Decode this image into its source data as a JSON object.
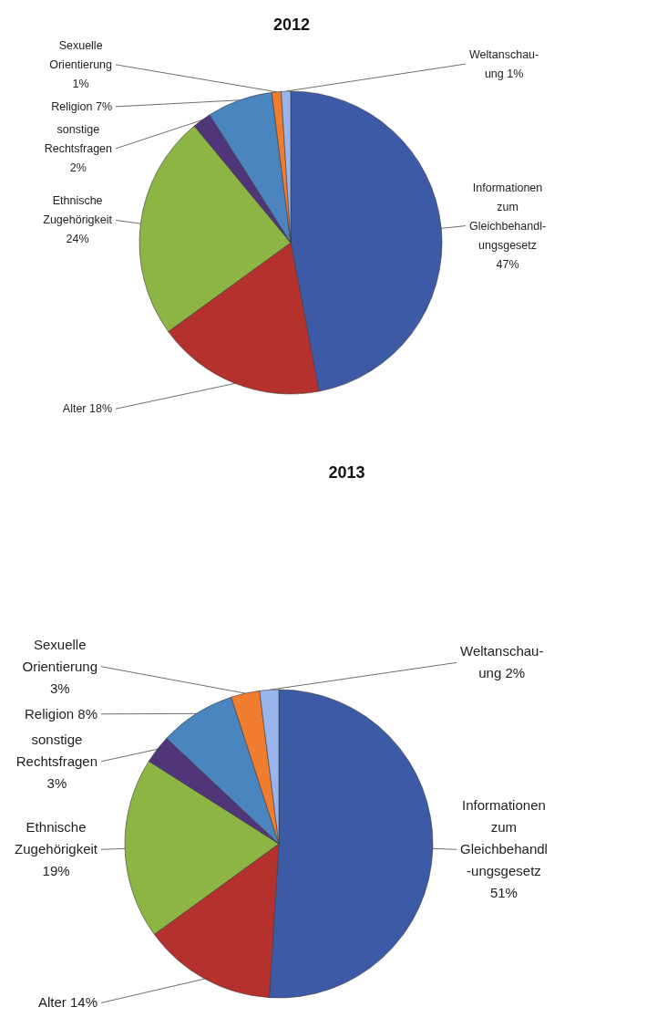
{
  "chart_data": [
    {
      "type": "pie",
      "title": "2012",
      "categories": [
        "Informationen zum Gleichbehandl-ungsgesetz",
        "Alter",
        "Ethnische Zugehörigkeit",
        "sonstige Rechtsfragen",
        "Religion",
        "Sexuelle Orientierung",
        "Weltanschau-ung"
      ],
      "values": [
        47,
        18,
        24,
        2,
        7,
        1,
        1
      ],
      "value_labels": [
        "47%",
        "18%",
        "24%",
        "2%",
        "7%",
        "1%",
        "1%"
      ],
      "colors": [
        "#3d5aa6",
        "#b5312d",
        "#8db544",
        "#51357a",
        "#4a85c0",
        "#f07c30",
        "#9ab5ec"
      ]
    },
    {
      "type": "pie",
      "title": "2013",
      "categories": [
        "Informationen zum Gleichbehandl -ungsgesetz",
        "Alter",
        "Ethnische Zugehörigkeit",
        "sonstige Rechtsfragen",
        "Religion",
        "Sexuelle Orientierung",
        "Weltanschau-ung"
      ],
      "values": [
        51,
        14,
        19,
        3,
        8,
        3,
        2
      ],
      "value_labels": [
        "51%",
        "14%",
        "19%",
        "3%",
        "8%",
        "3%",
        "2%"
      ],
      "colors": [
        "#3d5aa6",
        "#b5312d",
        "#8db544",
        "#51357a",
        "#4a85c0",
        "#f07c30",
        "#9ab5ec"
      ]
    }
  ]
}
